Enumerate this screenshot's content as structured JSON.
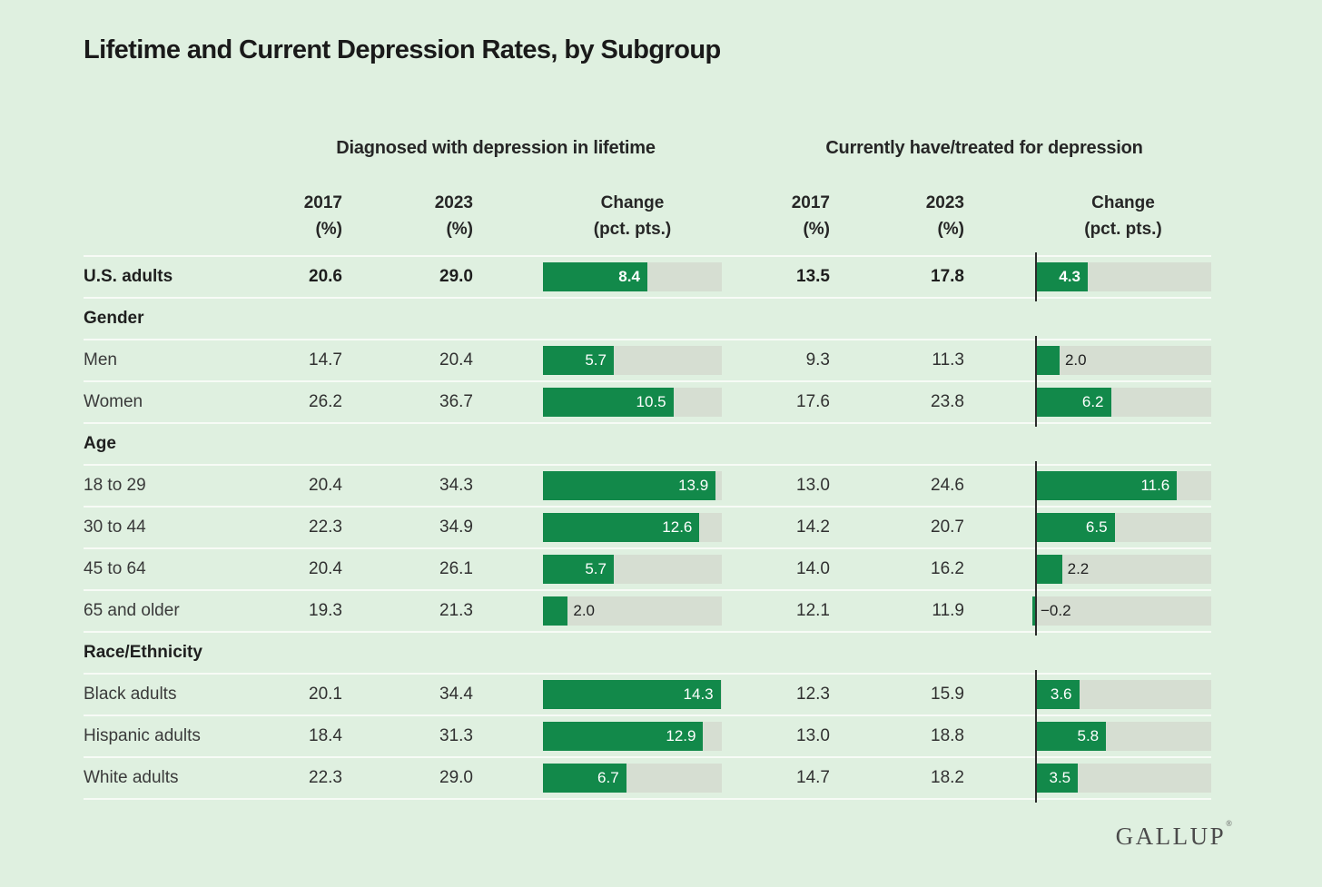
{
  "title": "Lifetime and Current Depression Rates, by Subgroup",
  "headers": {
    "group_lifetime": "Diagnosed with depression in lifetime",
    "group_current": "Currently have/treated for depression",
    "col_2017": "2017\n(%)",
    "col_2023": "2023\n(%)",
    "col_change": "Change\n(pct. pts.)"
  },
  "logo": {
    "text": "GALLUP",
    "mark": "®"
  },
  "colors": {
    "background": "#dff0e0",
    "bar_green": "#12894a",
    "bar_track": "#d6ded2",
    "axis_line": "#2b2b2b",
    "separator": "#f7fbf6",
    "bar_label_light": "#ffffff",
    "bar_label_dark": "#222222"
  },
  "chart_data": {
    "type": "table",
    "bar_scale_max": 14.4,
    "inside_label_threshold": 3,
    "measures": [
      "Diagnosed with depression in lifetime",
      "Currently have/treated for depression"
    ],
    "columns": [
      "2017 (%)",
      "2023 (%)",
      "Change (pct. pts.)"
    ],
    "rows": [
      {
        "type": "data",
        "label": "U.S. adults",
        "emphasis": true,
        "lifetime": {
          "y2017": "20.6",
          "y2023": "29.0",
          "change": 8.4,
          "change_label": "8.4"
        },
        "current": {
          "y2017": "13.5",
          "y2023": "17.8",
          "change": 4.3,
          "change_label": "4.3"
        }
      },
      {
        "type": "section",
        "label": "Gender"
      },
      {
        "type": "data",
        "label": "Men",
        "lifetime": {
          "y2017": "14.7",
          "y2023": "20.4",
          "change": 5.7,
          "change_label": "5.7"
        },
        "current": {
          "y2017": "9.3",
          "y2023": "11.3",
          "change": 2.0,
          "change_label": "2.0"
        }
      },
      {
        "type": "data",
        "label": "Women",
        "lifetime": {
          "y2017": "26.2",
          "y2023": "36.7",
          "change": 10.5,
          "change_label": "10.5"
        },
        "current": {
          "y2017": "17.6",
          "y2023": "23.8",
          "change": 6.2,
          "change_label": "6.2"
        }
      },
      {
        "type": "section",
        "label": "Age"
      },
      {
        "type": "data",
        "label": "18 to 29",
        "lifetime": {
          "y2017": "20.4",
          "y2023": "34.3",
          "change": 13.9,
          "change_label": "13.9"
        },
        "current": {
          "y2017": "13.0",
          "y2023": "24.6",
          "change": 11.6,
          "change_label": "11.6"
        }
      },
      {
        "type": "data",
        "label": "30 to 44",
        "lifetime": {
          "y2017": "22.3",
          "y2023": "34.9",
          "change": 12.6,
          "change_label": "12.6"
        },
        "current": {
          "y2017": "14.2",
          "y2023": "20.7",
          "change": 6.5,
          "change_label": "6.5"
        }
      },
      {
        "type": "data",
        "label": "45 to 64",
        "lifetime": {
          "y2017": "20.4",
          "y2023": "26.1",
          "change": 5.7,
          "change_label": "5.7"
        },
        "current": {
          "y2017": "14.0",
          "y2023": "16.2",
          "change": 2.2,
          "change_label": "2.2"
        }
      },
      {
        "type": "data",
        "label": "65 and older",
        "lifetime": {
          "y2017": "19.3",
          "y2023": "21.3",
          "change": 2.0,
          "change_label": "2.0"
        },
        "current": {
          "y2017": "12.1",
          "y2023": "11.9",
          "change": -0.2,
          "change_label": "−0.2"
        }
      },
      {
        "type": "section",
        "label": "Race/Ethnicity"
      },
      {
        "type": "data",
        "label": "Black adults",
        "lifetime": {
          "y2017": "20.1",
          "y2023": "34.4",
          "change": 14.3,
          "change_label": "14.3"
        },
        "current": {
          "y2017": "12.3",
          "y2023": "15.9",
          "change": 3.6,
          "change_label": "3.6"
        }
      },
      {
        "type": "data",
        "label": "Hispanic adults",
        "lifetime": {
          "y2017": "18.4",
          "y2023": "31.3",
          "change": 12.9,
          "change_label": "12.9"
        },
        "current": {
          "y2017": "13.0",
          "y2023": "18.8",
          "change": 5.8,
          "change_label": "5.8"
        }
      },
      {
        "type": "data",
        "label": "White adults",
        "lifetime": {
          "y2017": "22.3",
          "y2023": "29.0",
          "change": 6.7,
          "change_label": "6.7"
        },
        "current": {
          "y2017": "14.7",
          "y2023": "18.2",
          "change": 3.5,
          "change_label": "3.5"
        }
      }
    ]
  }
}
